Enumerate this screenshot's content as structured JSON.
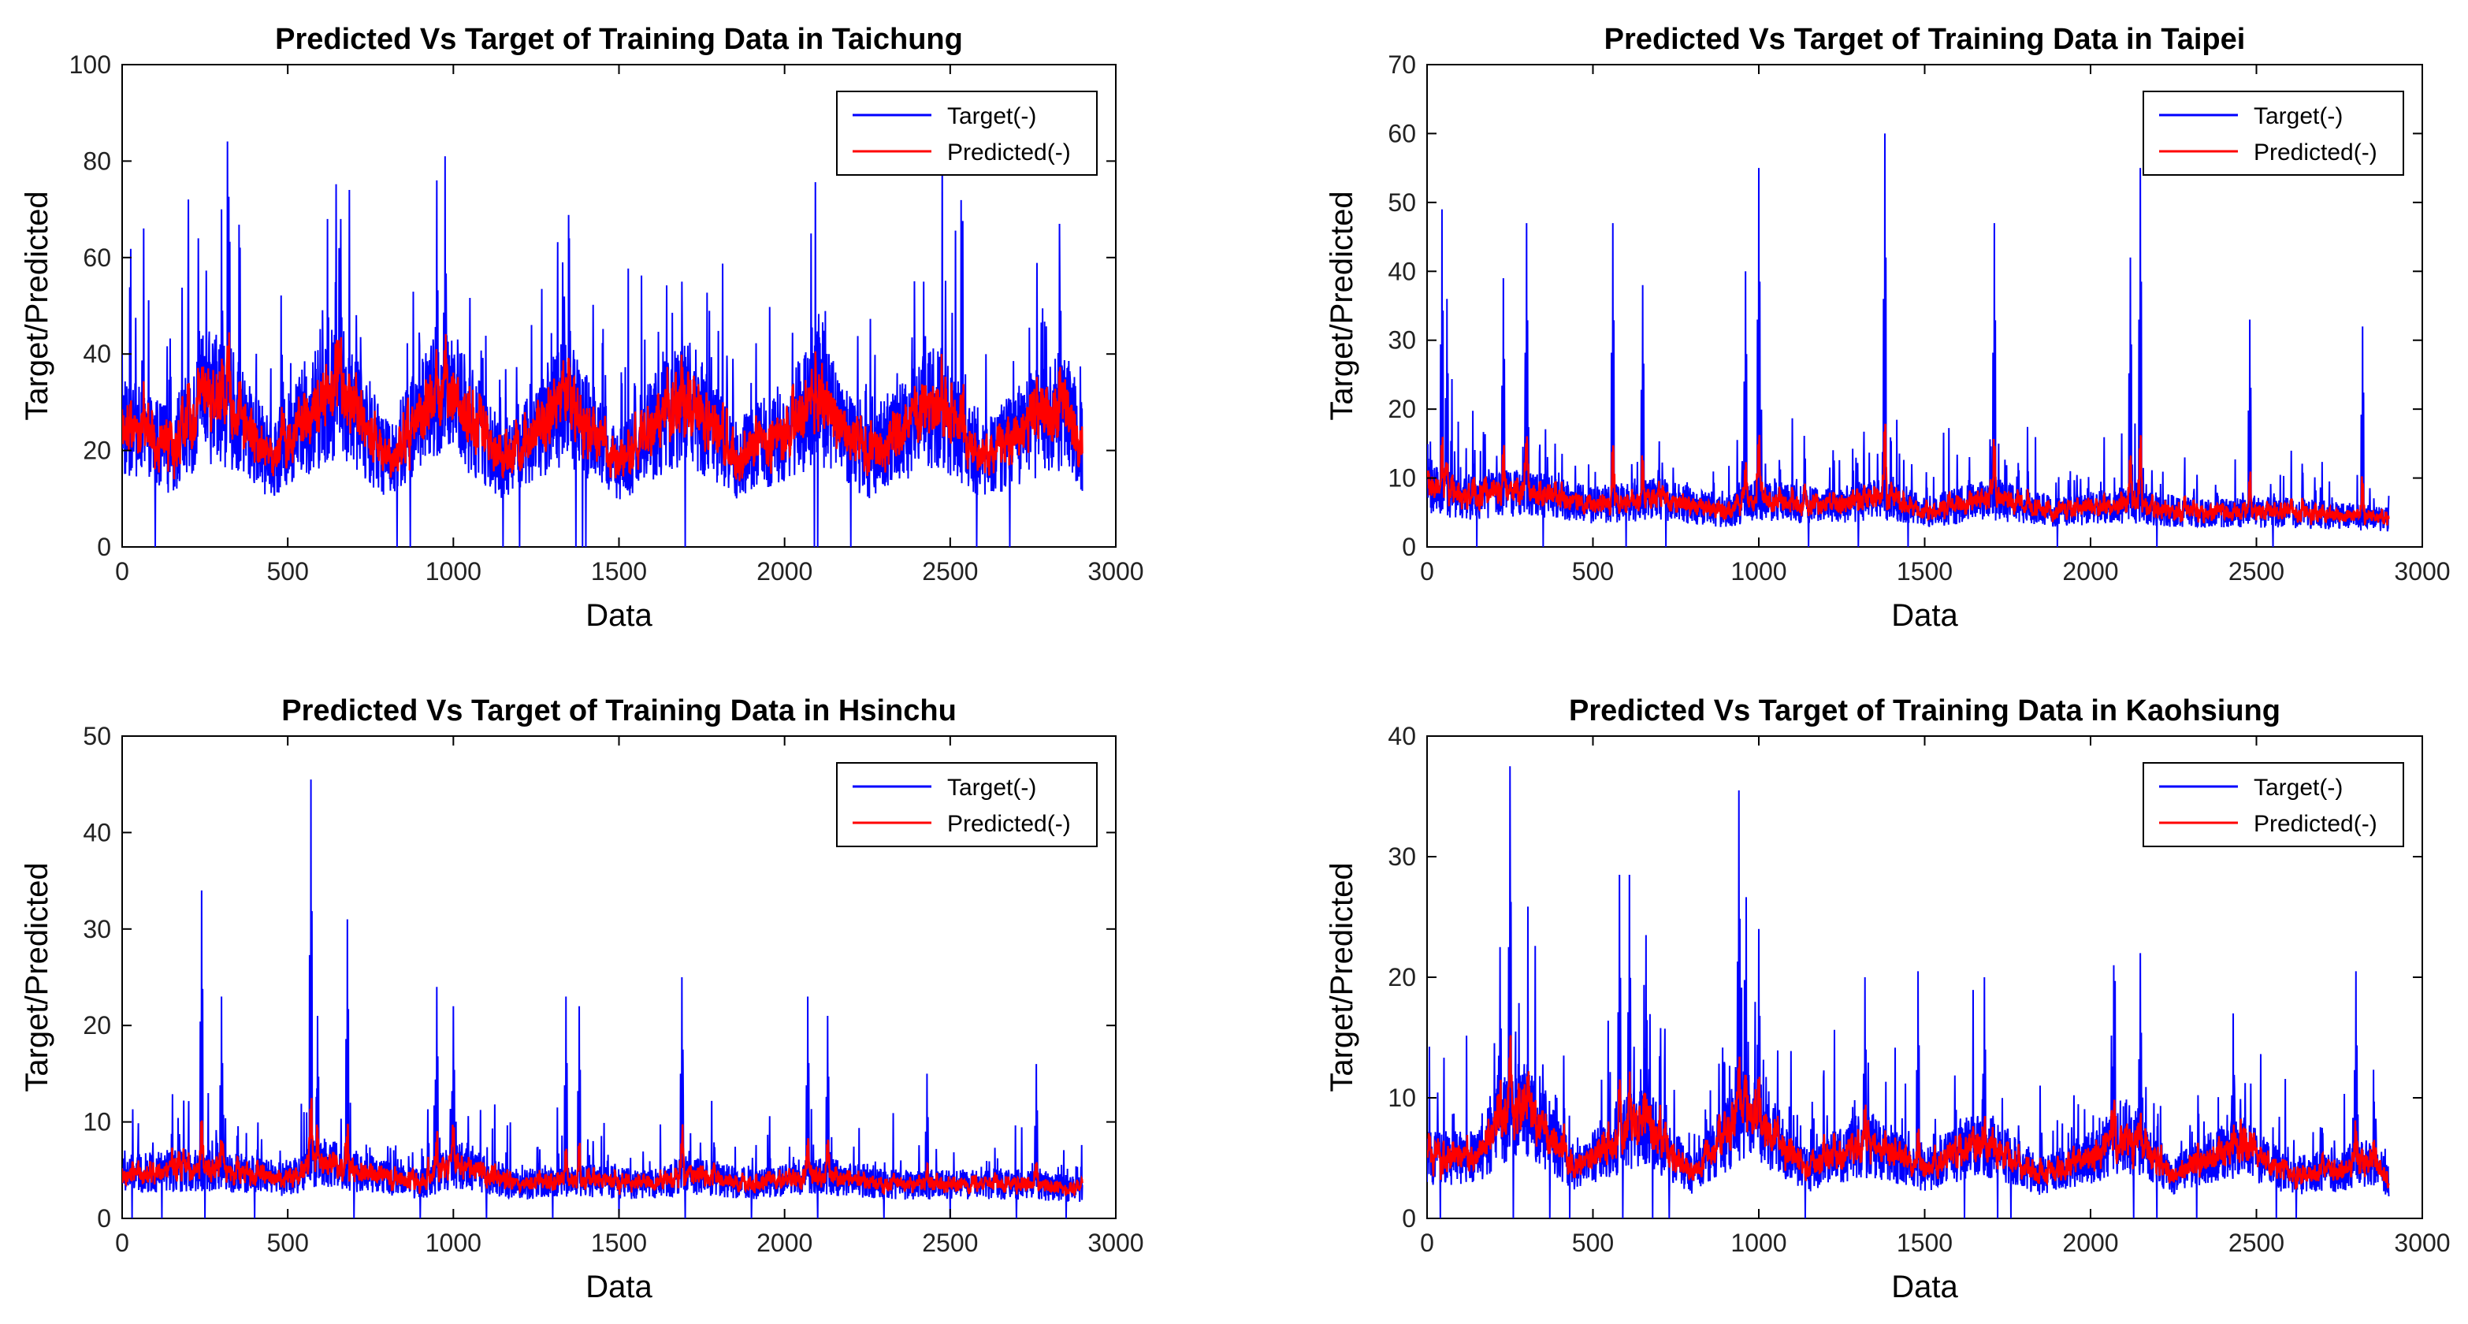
{
  "figure": {
    "background": "#ffffff",
    "target_color": "#0000ff",
    "predicted_color": "#ff0000"
  },
  "chart_data": [
    {
      "type": "line",
      "title": "Predicted Vs Target of Training Data in Taichung",
      "xlabel": "Data",
      "ylabel": "Target/Predicted",
      "xlim": [
        0,
        3000
      ],
      "ylim": [
        0,
        100
      ],
      "xticks": [
        0,
        500,
        1000,
        1500,
        2000,
        2500,
        3000
      ],
      "yticks": [
        0,
        20,
        40,
        60,
        80,
        100
      ],
      "legend": {
        "position": "top-right",
        "entries": [
          "Target(-)",
          "Predicted(-)"
        ]
      },
      "n_points": 2900,
      "series": [
        {
          "name": "Target(-)",
          "color": "#0000ff",
          "kind": "target"
        },
        {
          "name": "Predicted(-)",
          "color": "#ff0000",
          "kind": "predicted"
        }
      ],
      "envelope": {
        "x": [
          0,
          150,
          250,
          300,
          450,
          550,
          650,
          800,
          950,
          1000,
          1150,
          1300,
          1350,
          1500,
          1650,
          1700,
          1850,
          2000,
          2100,
          2250,
          2400,
          2450,
          2600,
          2750,
          2850,
          2900
        ],
        "level": [
          25,
          20,
          31,
          31,
          18,
          26,
          33,
          18,
          31,
          31,
          18,
          28,
          30,
          17,
          28,
          31,
          18,
          24,
          31,
          18,
          27,
          30,
          18,
          25,
          29,
          20
        ]
      },
      "peaks": [
        {
          "x": 0,
          "y": 40
        },
        {
          "x": 230,
          "y": 64
        },
        {
          "x": 300,
          "y": 70
        },
        {
          "x": 620,
          "y": 68
        },
        {
          "x": 660,
          "y": 68
        },
        {
          "x": 950,
          "y": 76
        },
        {
          "x": 975,
          "y": 81
        },
        {
          "x": 1330,
          "y": 59
        },
        {
          "x": 1350,
          "y": 64
        },
        {
          "x": 1690,
          "y": 55
        },
        {
          "x": 2080,
          "y": 65
        },
        {
          "x": 2100,
          "y": 69
        },
        {
          "x": 2420,
          "y": 55
        },
        {
          "x": 2830,
          "y": 67
        }
      ],
      "dips": [
        100,
        830,
        870,
        1150,
        1200,
        1370,
        1390,
        1400,
        1700,
        2090,
        2100,
        2200,
        2580,
        2680
      ]
    },
    {
      "type": "line",
      "title": "Predicted Vs Target of Training Data in Taipei",
      "xlabel": "Data",
      "ylabel": "Target/Predicted",
      "xlim": [
        0,
        3000
      ],
      "ylim": [
        0,
        70
      ],
      "xticks": [
        0,
        500,
        1000,
        1500,
        2000,
        2500,
        3000
      ],
      "yticks": [
        0,
        10,
        20,
        30,
        40,
        50,
        60,
        70
      ],
      "legend": {
        "position": "top-right",
        "entries": [
          "Target(-)",
          "Predicted(-)"
        ]
      },
      "n_points": 2900,
      "series": [
        {
          "name": "Target(-)",
          "color": "#0000ff",
          "kind": "target"
        },
        {
          "name": "Predicted(-)",
          "color": "#ff0000",
          "kind": "predicted"
        }
      ],
      "envelope": {
        "x": [
          0,
          100,
          300,
          500,
          700,
          900,
          1000,
          1200,
          1400,
          1500,
          1700,
          1900,
          2100,
          2300,
          2600,
          2900
        ],
        "level": [
          9,
          7,
          8,
          6,
          7,
          5,
          7,
          6,
          7,
          5,
          7,
          5,
          6,
          5,
          5,
          4
        ]
      },
      "peaks": [
        {
          "x": 45,
          "y": 49
        },
        {
          "x": 60,
          "y": 36
        },
        {
          "x": 230,
          "y": 39
        },
        {
          "x": 300,
          "y": 47
        },
        {
          "x": 560,
          "y": 47
        },
        {
          "x": 650,
          "y": 38
        },
        {
          "x": 960,
          "y": 40
        },
        {
          "x": 1000,
          "y": 55
        },
        {
          "x": 1380,
          "y": 60
        },
        {
          "x": 1710,
          "y": 47
        },
        {
          "x": 2120,
          "y": 42
        },
        {
          "x": 2150,
          "y": 55
        },
        {
          "x": 2480,
          "y": 33
        },
        {
          "x": 2820,
          "y": 32
        }
      ],
      "dips": [
        150,
        350,
        600,
        720,
        1150,
        1300,
        1450,
        1900,
        2200,
        2550
      ]
    },
    {
      "type": "line",
      "title": "Predicted Vs Target of Training Data in Hsinchu",
      "xlabel": "Data",
      "ylabel": "Target/Predicted",
      "xlim": [
        0,
        3000
      ],
      "ylim": [
        0,
        50
      ],
      "xticks": [
        0,
        500,
        1000,
        1500,
        2000,
        2500,
        3000
      ],
      "yticks": [
        0,
        10,
        20,
        30,
        40,
        50
      ],
      "legend": {
        "position": "top-right",
        "entries": [
          "Target(-)",
          "Predicted(-)"
        ]
      },
      "n_points": 2900,
      "series": [
        {
          "name": "Target(-)",
          "color": "#0000ff",
          "kind": "target"
        },
        {
          "name": "Predicted(-)",
          "color": "#ff0000",
          "kind": "predicted"
        }
      ],
      "envelope": {
        "x": [
          0,
          200,
          300,
          500,
          600,
          700,
          900,
          1000,
          1200,
          1400,
          1600,
          1700,
          1900,
          2100,
          2300,
          2500,
          2700,
          2900
        ],
        "level": [
          4.5,
          5,
          5,
          4,
          6,
          5,
          3.5,
          5.5,
          3.5,
          4,
          3.5,
          4.5,
          3.5,
          4.5,
          3.5,
          3.5,
          3.5,
          3
        ]
      },
      "peaks": [
        {
          "x": 240,
          "y": 34
        },
        {
          "x": 300,
          "y": 23
        },
        {
          "x": 570,
          "y": 45.5
        },
        {
          "x": 590,
          "y": 21
        },
        {
          "x": 680,
          "y": 31
        },
        {
          "x": 950,
          "y": 24
        },
        {
          "x": 1000,
          "y": 22
        },
        {
          "x": 1340,
          "y": 23
        },
        {
          "x": 1380,
          "y": 22
        },
        {
          "x": 1690,
          "y": 25
        },
        {
          "x": 2070,
          "y": 23
        },
        {
          "x": 2130,
          "y": 21
        },
        {
          "x": 2430,
          "y": 15
        },
        {
          "x": 2760,
          "y": 16
        }
      ],
      "dips": [
        30,
        120,
        250,
        400,
        700,
        900,
        1100,
        1300,
        1500,
        1700,
        1900,
        2100,
        2300,
        2500,
        2700,
        2850
      ]
    },
    {
      "type": "line",
      "title": "Predicted Vs Target of Training Data in Kaohsiung",
      "xlabel": "Data",
      "ylabel": "Target/Predicted",
      "xlim": [
        0,
        3000
      ],
      "ylim": [
        0,
        40
      ],
      "xticks": [
        0,
        500,
        1000,
        1500,
        2000,
        2500,
        3000
      ],
      "yticks": [
        0,
        10,
        20,
        30,
        40
      ],
      "legend": {
        "position": "top-right",
        "entries": [
          "Target(-)",
          "Predicted(-)"
        ]
      },
      "n_points": 2900,
      "series": [
        {
          "name": "Target(-)",
          "color": "#0000ff",
          "kind": "target"
        },
        {
          "name": "Predicted(-)",
          "color": "#ff0000",
          "kind": "predicted"
        }
      ],
      "envelope": {
        "x": [
          0,
          150,
          250,
          300,
          450,
          550,
          650,
          800,
          950,
          1000,
          1150,
          1300,
          1350,
          1500,
          1650,
          1700,
          1850,
          2000,
          2100,
          2250,
          2400,
          2450,
          2600,
          2750,
          2850,
          2900
        ],
        "level": [
          5,
          5,
          9,
          9,
          4,
          6,
          8,
          3.5,
          8.5,
          8,
          4,
          6,
          6,
          4,
          6,
          6,
          3.5,
          5,
          7,
          3.5,
          5.5,
          6,
          3.5,
          4,
          5,
          3
        ]
      },
      "peaks": [
        {
          "x": 250,
          "y": 37.5
        },
        {
          "x": 220,
          "y": 22.5
        },
        {
          "x": 580,
          "y": 28.5
        },
        {
          "x": 610,
          "y": 28.5
        },
        {
          "x": 660,
          "y": 23.5
        },
        {
          "x": 940,
          "y": 35.5
        },
        {
          "x": 1000,
          "y": 24
        },
        {
          "x": 1320,
          "y": 20
        },
        {
          "x": 1480,
          "y": 20.5
        },
        {
          "x": 1680,
          "y": 20
        },
        {
          "x": 2070,
          "y": 21
        },
        {
          "x": 2150,
          "y": 22
        },
        {
          "x": 2430,
          "y": 17
        },
        {
          "x": 2800,
          "y": 20.5
        }
      ],
      "dips": [
        40,
        260,
        370,
        430,
        590,
        680,
        730,
        1140,
        1620,
        1720,
        1760,
        2130,
        2200,
        2320,
        2560,
        2620
      ]
    }
  ]
}
